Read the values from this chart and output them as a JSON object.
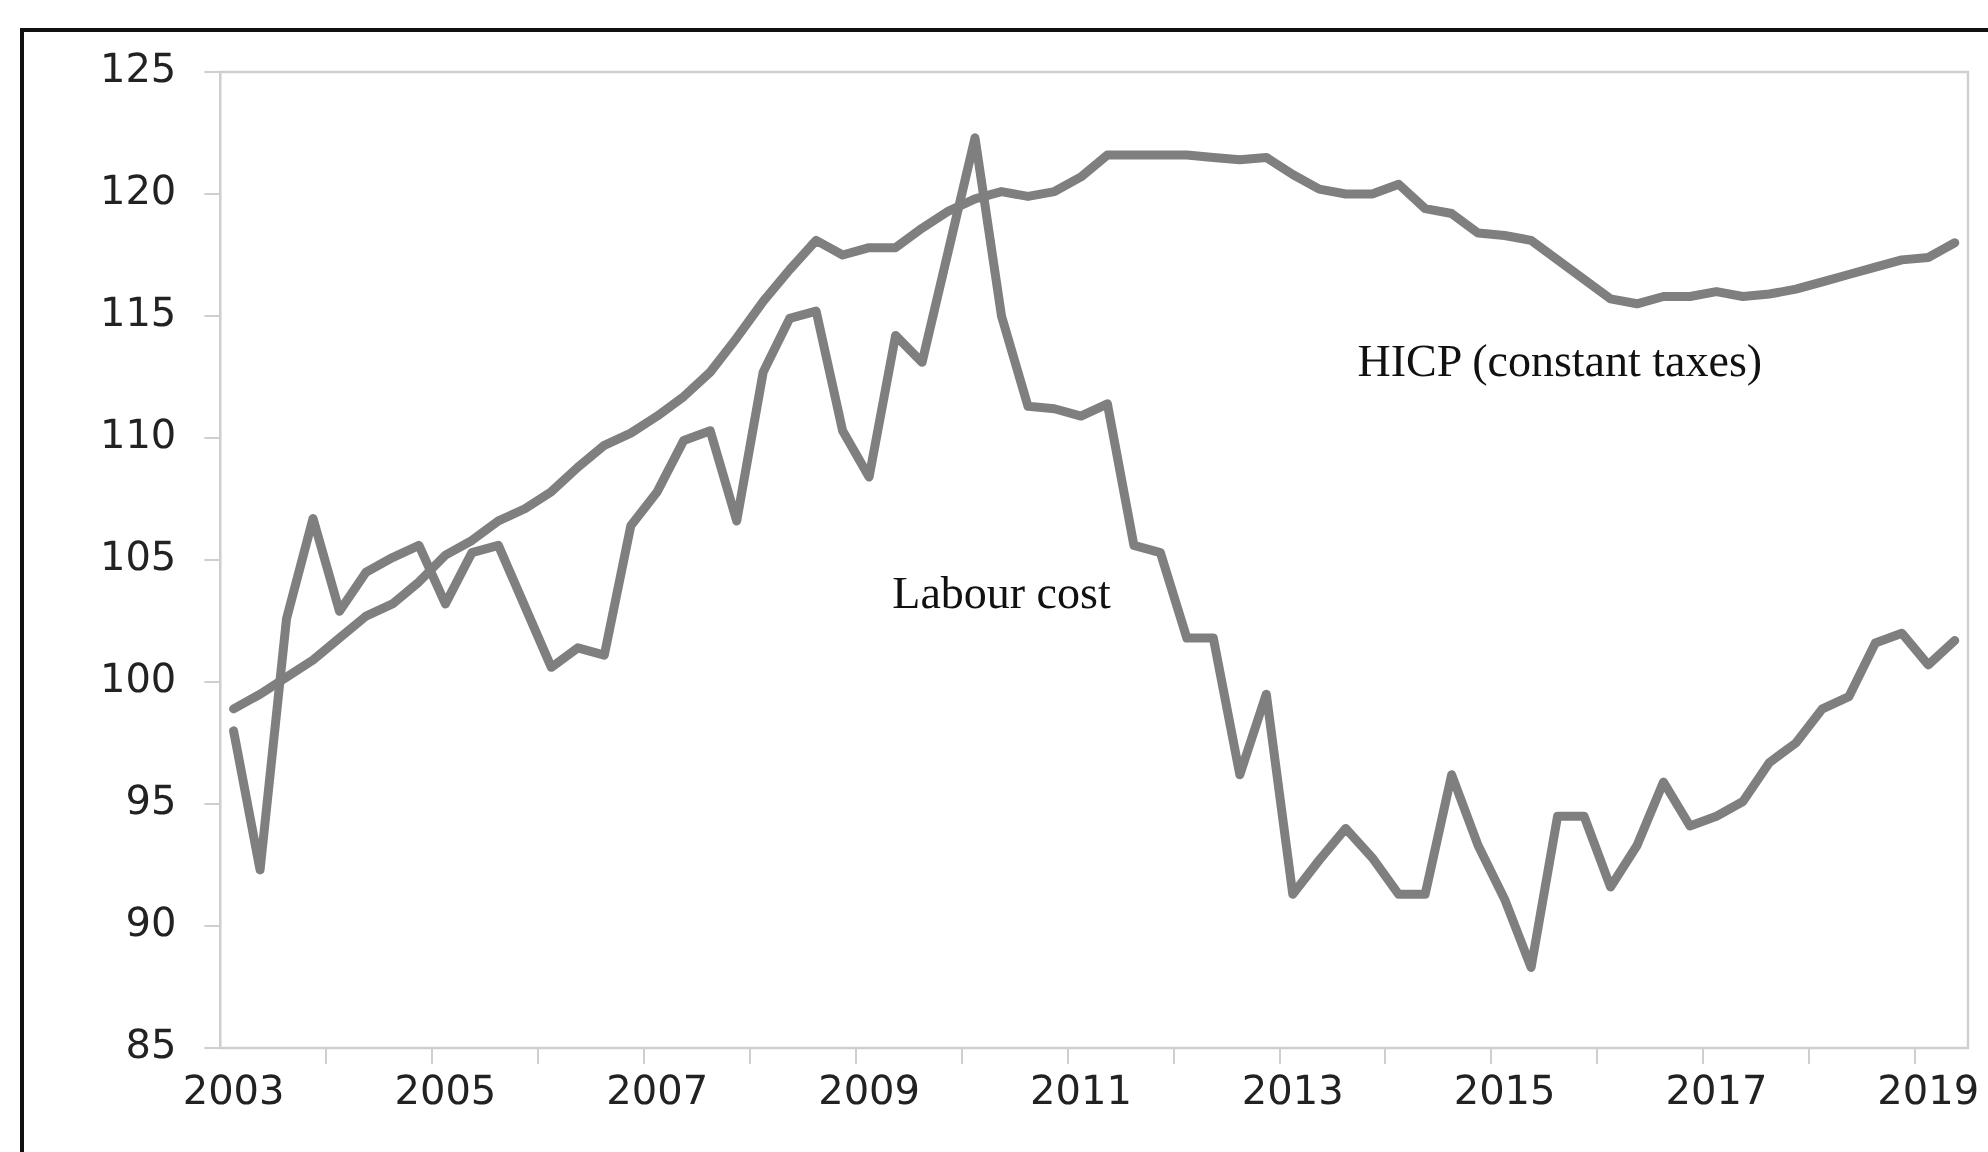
{
  "chart_data": {
    "type": "line",
    "categories": [
      "2003",
      null,
      null,
      null,
      null,
      null,
      null,
      null,
      "2005",
      null,
      null,
      null,
      null,
      null,
      null,
      null,
      "2007",
      null,
      null,
      null,
      null,
      null,
      null,
      null,
      "2009",
      null,
      null,
      null,
      null,
      null,
      null,
      null,
      "2011",
      null,
      null,
      null,
      null,
      null,
      null,
      null,
      "2013",
      null,
      null,
      null,
      null,
      null,
      null,
      null,
      "2015",
      null,
      null,
      null,
      null,
      null,
      null,
      null,
      "2017",
      null,
      null,
      null,
      null,
      null,
      null,
      null,
      "2019",
      null
    ],
    "series": [
      {
        "name": "HICP (constant taxes)",
        "color": "#7f7f7f",
        "values": [
          98.9,
          99.5,
          100.2,
          100.9,
          101.8,
          102.7,
          103.2,
          104.1,
          105.2,
          105.8,
          106.6,
          107.1,
          107.8,
          108.8,
          109.7,
          110.2,
          110.9,
          111.7,
          112.7,
          114.1,
          115.6,
          116.9,
          118.1,
          117.5,
          117.8,
          117.8,
          118.6,
          119.3,
          119.8,
          120.1,
          119.9,
          120.1,
          120.7,
          121.6,
          121.6,
          121.6,
          121.6,
          121.5,
          121.4,
          121.5,
          120.8,
          120.2,
          120.0,
          120.0,
          120.4,
          119.4,
          119.2,
          118.4,
          118.3,
          118.1,
          117.3,
          116.5,
          115.7,
          115.5,
          115.8,
          115.8,
          116.0,
          115.8,
          115.9,
          116.1,
          116.4,
          116.7,
          117.0,
          117.3,
          117.4,
          118.0
        ]
      },
      {
        "name": "Labour cost",
        "color": "#7f7f7f",
        "values": [
          98.0,
          92.3,
          102.6,
          106.7,
          102.9,
          104.5,
          105.1,
          105.6,
          103.2,
          105.3,
          105.6,
          103.1,
          100.6,
          101.4,
          101.1,
          106.4,
          107.8,
          109.9,
          110.3,
          106.6,
          112.7,
          114.9,
          115.2,
          110.3,
          108.4,
          114.2,
          113.1,
          117.7,
          122.3,
          115.0,
          111.3,
          111.2,
          110.9,
          111.4,
          105.6,
          105.3,
          101.8,
          101.8,
          96.2,
          99.5,
          91.3,
          92.7,
          94.0,
          92.8,
          91.3,
          91.3,
          96.2,
          93.3,
          91.1,
          88.3,
          94.5,
          94.5,
          91.6,
          93.3,
          95.9,
          94.1,
          94.5,
          95.1,
          96.7,
          97.5,
          98.9,
          99.4,
          101.6,
          102.0,
          100.7,
          101.7
        ]
      }
    ],
    "ylim": [
      85,
      125
    ],
    "yticks": [
      85,
      90,
      95,
      100,
      105,
      110,
      115,
      120,
      125
    ],
    "grid": false,
    "legend": false,
    "marker": "none",
    "line_style": "solid"
  }
}
